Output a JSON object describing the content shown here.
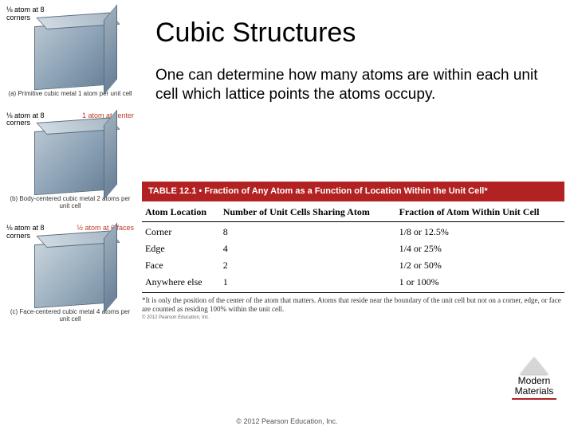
{
  "title": "Cubic Structures",
  "body_text": "One can determine how many atoms are within each unit cell which lattice points the atoms occupy.",
  "sidebar": [
    {
      "top_left": "⅛ atom at 8 corners",
      "top_right": "",
      "caption": "(a) Primitive cubic metal 1 atom per unit cell"
    },
    {
      "top_left": "⅛ atom at 8 corners",
      "top_right": "1 atom at center",
      "caption": "(b) Body-centered cubic metal 2 atoms per unit cell"
    },
    {
      "top_left": "⅛ atom at 8 corners",
      "top_right": "½ atom at 6 faces",
      "caption": "(c) Face-centered cubic metal 4 atoms per unit cell"
    }
  ],
  "table": {
    "header_bar": "TABLE 12.1 • Fraction of Any Atom as a Function of Location Within the Unit Cell*",
    "columns": [
      "Atom Location",
      "Number of Unit Cells Sharing Atom",
      "Fraction of Atom Within Unit Cell"
    ],
    "rows": [
      [
        "Corner",
        "8",
        "1/8 or 12.5%"
      ],
      [
        "Edge",
        "4",
        "1/4 or 25%"
      ],
      [
        "Face",
        "2",
        "1/2 or 50%"
      ],
      [
        "Anywhere else",
        "1",
        "1 or 100%"
      ]
    ],
    "footnote": "*It is only the position of the center of the atom that matters. Atoms that reside near the boundary of the unit cell but not on a corner, edge, or face are counted as residing 100% within the unit cell.",
    "table_copy": "© 2012 Pearson Education, Inc."
  },
  "badge": {
    "line1": "Modern",
    "line2": "Materials"
  },
  "footer": "© 2012 Pearson Education, Inc.",
  "colors": {
    "accent": "#b22222",
    "background": "#ffffff"
  }
}
